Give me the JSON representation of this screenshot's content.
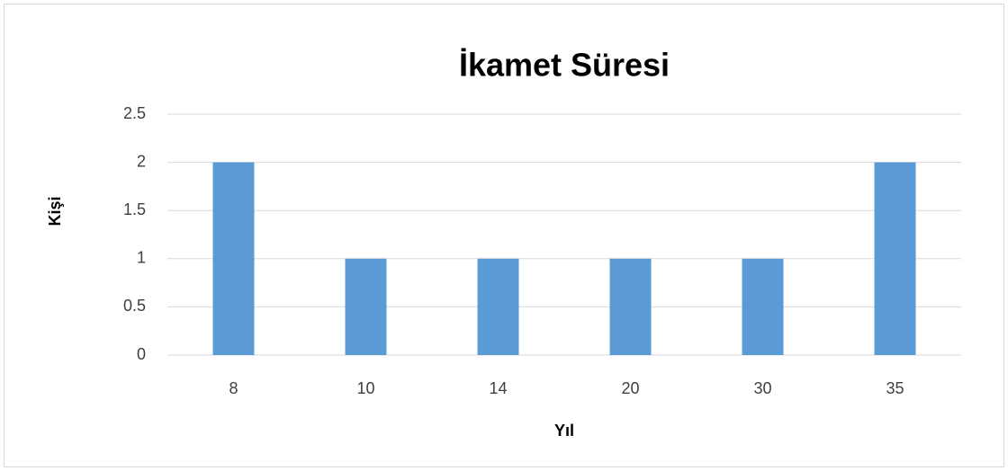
{
  "chart_data": {
    "type": "bar",
    "title": "İkamet Süresi",
    "x_label": "Yıl",
    "y_label": "Kişi",
    "categories": [
      "8",
      "10",
      "14",
      "20",
      "30",
      "35"
    ],
    "values": [
      2,
      1,
      1,
      1,
      1,
      2
    ],
    "color": "#5b9bd5",
    "ylim": [
      0,
      2.5
    ],
    "yticks": [
      0,
      0.5,
      1,
      1.5,
      2,
      2.5
    ],
    "grid": true
  }
}
